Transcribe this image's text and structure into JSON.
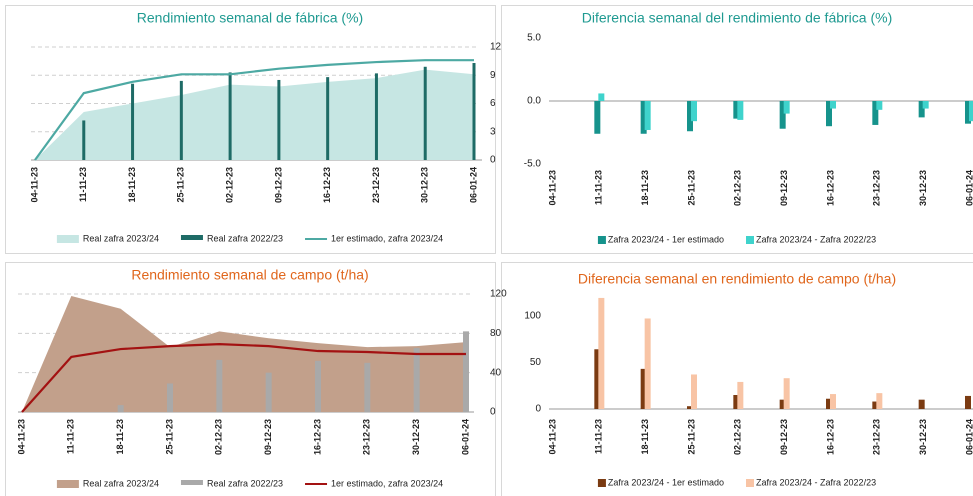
{
  "chart_data": [
    {
      "type": "combo",
      "title": "Rendimiento semanal de fábrica (%)",
      "title_color": "#1f9a91",
      "y_axis_side": "right",
      "grid": true,
      "categories": [
        "04-11-23",
        "11-11-23",
        "18-11-23",
        "25-11-23",
        "02-12-23",
        "09-12-23",
        "16-12-23",
        "23-12-23",
        "30-12-23",
        "06-01-24"
      ],
      "ylim": [
        0,
        12
      ],
      "yticks": [
        0,
        3,
        6,
        9,
        12
      ],
      "series": [
        {
          "name": "Real zafra 2023/24",
          "type": "area",
          "color": "#c6e6e3",
          "values": [
            0,
            5.1,
            6.0,
            6.9,
            8.0,
            7.8,
            8.3,
            8.7,
            9.6,
            9.1
          ]
        },
        {
          "name": "Real zafra 2022/23",
          "type": "bar",
          "color": "#1e6b66",
          "values": [
            null,
            4.2,
            8.1,
            8.4,
            9.3,
            8.5,
            8.8,
            9.2,
            9.9,
            10.3
          ]
        },
        {
          "name": "1er estimado, zafra 2023/24",
          "type": "line",
          "color": "#4da9a3",
          "values": [
            0,
            7.1,
            8.3,
            9.1,
            9.1,
            9.7,
            10.1,
            10.4,
            10.6,
            10.6
          ]
        }
      ]
    },
    {
      "type": "bar",
      "title": "Diferencia semanal del rendimiento de fábrica (%)",
      "title_color": "#1f9a91",
      "y_axis_side": "left",
      "grid": false,
      "categories": [
        "04-11-23",
        "11-11-23",
        "18-11-23",
        "25-11-23",
        "02-12-23",
        "09-12-23",
        "16-12-23",
        "23-12-23",
        "30-12-23",
        "06-01-24"
      ],
      "ylim": [
        -5,
        5
      ],
      "yticks": [
        {
          "value": 5,
          "label": "5.0"
        },
        {
          "value": 0,
          "label": "0.0"
        },
        {
          "value": -5,
          "label": "-5.0"
        }
      ],
      "series": [
        {
          "name": "Zafra 2023/24 - 1er estimado",
          "color": "#16938c",
          "values": [
            null,
            -2.6,
            -2.6,
            -2.4,
            -1.4,
            -2.2,
            -2.0,
            -1.9,
            -1.3,
            -1.8
          ]
        },
        {
          "name": "Zafra 2023/24 - Zafra 2022/23",
          "color": "#3fd3cc",
          "values": [
            null,
            0.6,
            -2.3,
            -1.6,
            -1.5,
            -1.0,
            -0.6,
            -0.7,
            -0.6,
            -1.6
          ]
        }
      ]
    },
    {
      "type": "combo",
      "title": "Rendimiento semanal de campo (t/ha)",
      "title_color": "#e0661c",
      "y_axis_side": "right",
      "grid": true,
      "categories": [
        "04-11-23",
        "11-11-23",
        "18-11-23",
        "25-11-23",
        "02-12-23",
        "09-12-23",
        "16-12-23",
        "23-12-23",
        "30-12-23",
        "06-01-24"
      ],
      "ylim": [
        0,
        120
      ],
      "yticks": [
        0,
        40,
        80,
        120
      ],
      "series": [
        {
          "name": "Real zafra 2023/24",
          "type": "area",
          "color": "#c2a08b",
          "values": [
            0,
            118,
            105,
            66,
            82,
            75,
            70,
            66,
            67,
            71
          ]
        },
        {
          "name": "Real zafra 2022/23",
          "type": "bar",
          "color": "#a9a9a9",
          "values": [
            null,
            null,
            7,
            29,
            53,
            40,
            52,
            50,
            65,
            82
          ]
        },
        {
          "name": "1er estimado, zafra 2023/24",
          "type": "line",
          "color": "#a31212",
          "values": [
            0,
            56,
            64,
            67,
            69,
            67,
            62,
            61,
            59,
            59
          ]
        }
      ]
    },
    {
      "type": "bar",
      "title": "Diferencia semanal en rendimiento de campo (t/ha)",
      "title_color": "#e0661c",
      "y_axis_side": "left",
      "grid": false,
      "categories": [
        "04-11-23",
        "11-11-23",
        "18-11-23",
        "25-11-23",
        "02-12-23",
        "09-12-23",
        "16-12-23",
        "23-12-23",
        "30-12-23",
        "06-01-24"
      ],
      "ylim": [
        0,
        120
      ],
      "yticks": [
        0,
        50,
        100
      ],
      "series": [
        {
          "name": "Zafra 2023/24 - 1er estimado",
          "color": "#7b3b12",
          "values": [
            null,
            64,
            43,
            3,
            15,
            10,
            11,
            8,
            10,
            14
          ]
        },
        {
          "name": "Zafra 2023/24 - Zafra 2022/23",
          "color": "#f8c4a5",
          "values": [
            null,
            119,
            97,
            37,
            29,
            33,
            16,
            17,
            null,
            null
          ]
        }
      ]
    }
  ]
}
